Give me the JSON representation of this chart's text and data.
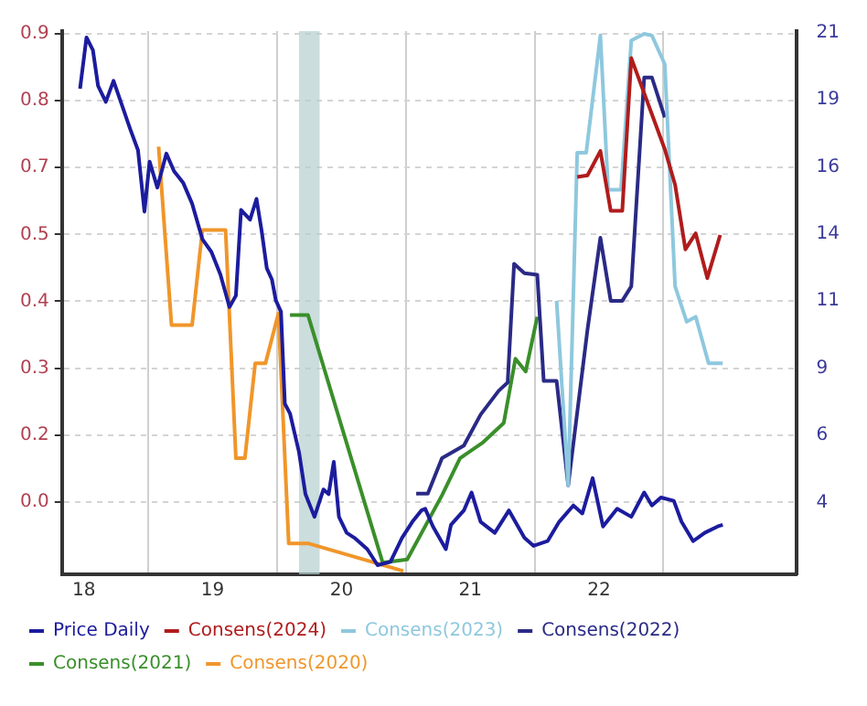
{
  "chart_data": {
    "type": "line",
    "xlim": [
      17.83,
      23.53
    ],
    "xticks": [
      18,
      {
        "value": 18.5,
        "label": null
      },
      19,
      {
        "value": 19.5,
        "label": null
      },
      20,
      {
        "value": 20.5,
        "label": null
      },
      21,
      {
        "value": 21.5,
        "label": null
      },
      22,
      {
        "value": 22.5,
        "label": null
      }
    ],
    "ylim": [
      -0.083,
      0.9
    ],
    "yticks": [
      {
        "value": 0.048,
        "label": "0.0"
      },
      {
        "value": 0.169,
        "label": "0.2"
      },
      {
        "value": 0.29,
        "label": "0.3"
      },
      {
        "value": 0.411,
        "label": "0.4"
      },
      {
        "value": 0.532,
        "label": "0.5"
      },
      {
        "value": 0.653,
        "label": "0.7"
      },
      {
        "value": 0.774,
        "label": "0.8"
      },
      {
        "value": 0.895,
        "label": "0.9"
      }
    ],
    "y2lim": [
      1.4,
      21.05
    ],
    "y2ticks": [
      4,
      {
        "value": 6.43,
        "label": "6"
      },
      {
        "value": 8.86,
        "label": "9"
      },
      {
        "value": 11.29,
        "label": "11"
      },
      {
        "value": 13.71,
        "label": "14"
      },
      {
        "value": 16.14,
        "label": "16"
      },
      {
        "value": 18.57,
        "label": "19"
      },
      21
    ],
    "grid": true,
    "legend": "bottom",
    "bands": [
      {
        "axis": "x",
        "from": 19.67,
        "to": 19.83,
        "color": "#b5cfcf"
      }
    ],
    "series": [
      {
        "name": "Price Daily",
        "color": "#1c1c9e",
        "axis": "y2",
        "x": [
          17.97,
          18.02,
          18.07,
          18.11,
          18.17,
          18.23,
          18.3,
          18.36,
          18.42,
          18.47,
          18.51,
          18.57,
          18.64,
          18.7,
          18.77,
          18.84,
          18.92,
          18.99,
          19.06,
          19.13,
          19.18,
          19.22,
          19.29,
          19.34,
          19.38,
          19.42,
          19.46,
          19.49,
          19.53,
          19.56,
          19.6,
          19.67,
          19.72,
          19.79,
          19.86,
          19.9,
          19.94,
          19.98,
          20.04,
          20.1,
          20.2,
          20.28,
          20.38,
          20.47,
          20.55,
          20.62,
          20.65,
          20.71,
          20.81,
          20.85,
          20.95,
          21.01,
          21.08,
          21.19,
          21.3,
          21.42,
          21.49,
          21.6,
          21.69,
          21.8,
          21.87,
          21.95,
          22.03,
          22.14,
          22.25,
          22.35,
          22.41,
          22.48,
          22.58,
          22.64,
          22.73,
          22.82,
          22.92,
          22.96
        ],
        "values": [
          18.97,
          20.82,
          20.36,
          19.07,
          18.49,
          19.25,
          18.31,
          17.5,
          16.74,
          14.52,
          16.33,
          15.39,
          16.62,
          15.98,
          15.57,
          14.81,
          13.52,
          13.06,
          12.24,
          11.07,
          11.48,
          14.58,
          14.23,
          14.98,
          13.82,
          12.47,
          12.06,
          11.31,
          10.9,
          7.57,
          7.22,
          5.82,
          4.3,
          3.48,
          4.47,
          4.3,
          5.47,
          3.48,
          2.9,
          2.72,
          2.31,
          1.73,
          1.85,
          2.72,
          3.3,
          3.71,
          3.77,
          3.13,
          2.31,
          3.19,
          3.71,
          4.36,
          3.3,
          2.9,
          3.71,
          2.72,
          2.43,
          2.6,
          3.3,
          3.89,
          3.6,
          4.88,
          3.13,
          3.77,
          3.48,
          4.36,
          3.89,
          4.18,
          4.06,
          3.3,
          2.6,
          2.9,
          3.13,
          3.19
        ]
      },
      {
        "name": "Consens(2024)",
        "color": "#b01c1c",
        "x": [
          21.83,
          21.91,
          22.01,
          22.09,
          22.18,
          22.25,
          22.51,
          22.59,
          22.67,
          22.75,
          22.84,
          22.94
        ],
        "values": [
          0.636,
          0.639,
          0.683,
          0.575,
          0.575,
          0.851,
          0.686,
          0.622,
          0.505,
          0.534,
          0.453,
          0.531
        ]
      },
      {
        "name": "Consens(2023)",
        "color": "#8ec8de",
        "x": [
          21.67,
          21.76,
          21.83,
          21.9,
          22.01,
          22.07,
          22.17,
          22.25,
          22.35,
          22.41,
          22.51,
          22.59,
          22.68,
          22.75,
          22.85,
          22.96
        ],
        "values": [
          0.412,
          0.078,
          0.68,
          0.68,
          0.892,
          0.613,
          0.613,
          0.883,
          0.895,
          0.892,
          0.84,
          0.438,
          0.374,
          0.383,
          0.299,
          0.299
        ]
      },
      {
        "name": "Consens(2022)",
        "color": "#2a2a86",
        "x": [
          20.58,
          20.67,
          20.78,
          20.95,
          21.08,
          21.22,
          21.29,
          21.34,
          21.42,
          21.52,
          21.57,
          21.67,
          21.76,
          21.91,
          22.01,
          22.09,
          22.18,
          22.25,
          22.35,
          22.41,
          22.51
        ],
        "values": [
          0.063,
          0.063,
          0.127,
          0.15,
          0.206,
          0.249,
          0.264,
          0.479,
          0.462,
          0.459,
          0.267,
          0.267,
          0.078,
          0.36,
          0.526,
          0.412,
          0.412,
          0.438,
          0.816,
          0.816,
          0.744
        ]
      },
      {
        "name": "Consens(2021)",
        "color": "#3a8f2a",
        "x": [
          19.6,
          19.74,
          20.32,
          20.51,
          20.78,
          20.92,
          21.1,
          21.26,
          21.35,
          21.43,
          21.52
        ],
        "values": [
          0.386,
          0.386,
          -0.062,
          -0.056,
          0.06,
          0.127,
          0.156,
          0.191,
          0.307,
          0.284,
          0.383
        ]
      },
      {
        "name": "Consens(2020)",
        "color": "#f0962a",
        "x": [
          18.58,
          18.68,
          18.84,
          18.92,
          19.1,
          19.18,
          19.25,
          19.33,
          19.41,
          19.51,
          19.59,
          19.74,
          20.48
        ],
        "values": [
          0.691,
          0.368,
          0.368,
          0.54,
          0.54,
          0.127,
          0.127,
          0.299,
          0.299,
          0.389,
          -0.027,
          -0.027,
          -0.077
        ]
      }
    ]
  }
}
